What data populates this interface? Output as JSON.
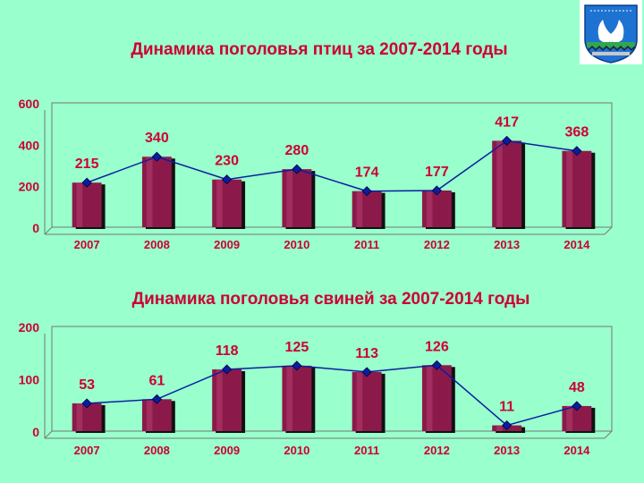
{
  "colors": {
    "background": "#99ffcc",
    "title": "#cc0033",
    "bar_fill": "#8b1a4a",
    "bar_shadow": "#111111",
    "line": "#0a1ea0",
    "marker": "#0a1ea0",
    "data_label": "#cc0033",
    "year_label": "#cc0033",
    "axis_label": "#cc0033"
  },
  "emblem": {
    "icon": "emblem-icon"
  },
  "chart_data": [
    {
      "type": "bar",
      "title": "Динамика поголовья птиц за 2007-2014 годы",
      "categories": [
        "2007",
        "2008",
        "2009",
        "2010",
        "2011",
        "2012",
        "2013",
        "2014"
      ],
      "values": [
        215,
        340,
        230,
        280,
        174,
        177,
        417,
        368
      ],
      "data_labels": [
        "215",
        "340",
        "230",
        "280",
        "174",
        "177",
        "417",
        "368"
      ],
      "overlay": "line-with-markers",
      "ylim": [
        0,
        600
      ],
      "yticks": [
        "0",
        "200",
        "400",
        "600"
      ],
      "ytick_values": [
        0,
        200,
        400,
        600
      ],
      "grid": false,
      "xlabel": "",
      "ylabel": ""
    },
    {
      "type": "bar",
      "title": "Динамика поголовья свиней за 2007-2014 годы",
      "categories": [
        "2007",
        "2008",
        "2009",
        "2010",
        "2011",
        "2012",
        "2013",
        "2014"
      ],
      "values": [
        53,
        61,
        118,
        125,
        113,
        126,
        11,
        48
      ],
      "data_labels": [
        "53",
        "61",
        "118",
        "125",
        "113",
        "126",
        "11",
        "48"
      ],
      "overlay": "line-with-markers",
      "ylim": [
        0,
        200
      ],
      "yticks": [
        "0",
        "100",
        "200"
      ],
      "ytick_values": [
        0,
        100,
        200
      ],
      "grid": false,
      "xlabel": "",
      "ylabel": ""
    }
  ]
}
